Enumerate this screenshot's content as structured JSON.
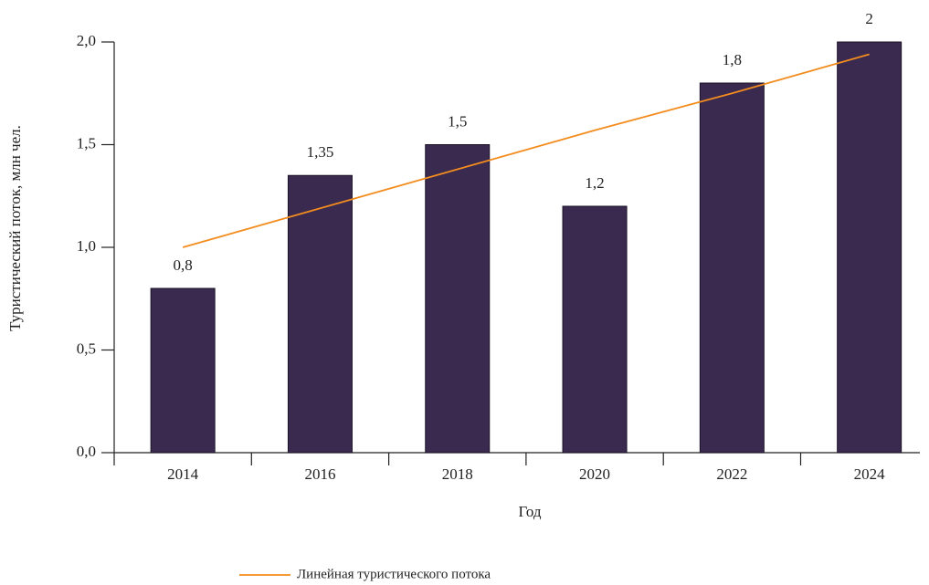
{
  "chart_data": {
    "type": "bar",
    "categories": [
      "2014",
      "2016",
      "2018",
      "2020",
      "2022",
      "2024"
    ],
    "values": [
      0.8,
      1.35,
      1.5,
      1.2,
      1.8,
      2
    ],
    "value_labels": [
      "0,8",
      "1,35",
      "1,5",
      "1,2",
      "1,8",
      "2"
    ],
    "color": "#3b2a4f",
    "trend": {
      "name": "Линейная туристического потока",
      "color": "#f28c1e",
      "values": [
        1.0,
        1.19,
        1.38,
        1.57,
        1.75,
        1.94
      ]
    },
    "xlabel": "Год",
    "ylabel": "Туристический поток, млн чел.",
    "ylim": [
      0,
      2
    ],
    "yticks": [
      {
        "value": 0,
        "label": "0,0"
      },
      {
        "value": 0.5,
        "label": "0,5"
      },
      {
        "value": 1,
        "label": "1,0"
      },
      {
        "value": 1.5,
        "label": "1,5"
      },
      {
        "value": 2,
        "label": "2,0"
      }
    ],
    "legend": "bottom"
  }
}
